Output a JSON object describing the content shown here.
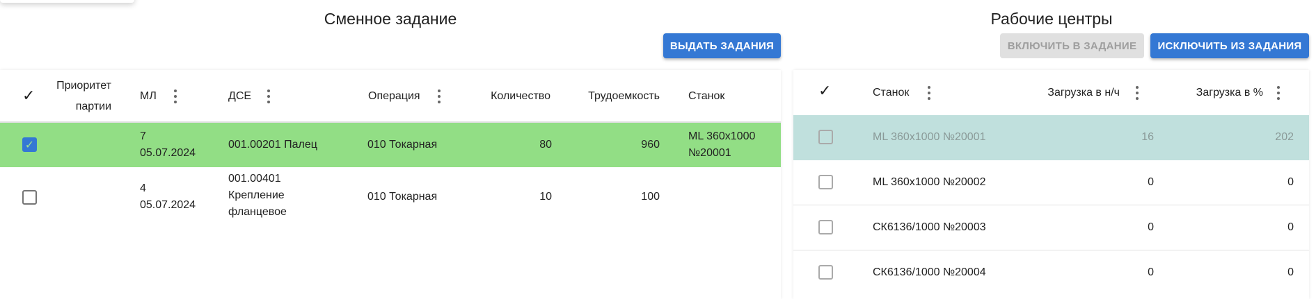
{
  "left": {
    "title": "Сменное задание",
    "issue_button": "ВЫДАТЬ ЗАДАНИЯ",
    "columns": {
      "check": "✓",
      "priority_1": "Приоритет",
      "priority_2": "партии",
      "ml": "МЛ",
      "dse": "ДСЕ",
      "operation": "Операция",
      "quantity": "Количество",
      "labor": "Трудоемкость",
      "machine": "Станок"
    },
    "rows": [
      {
        "selected": true,
        "ml_num": "7",
        "ml_date": "05.07.2024",
        "dse": [
          "001.00201 Палец"
        ],
        "operation": "010 Токарная",
        "quantity": "80",
        "labor": "960",
        "machine": [
          "ML 360x1000",
          "№20001"
        ]
      },
      {
        "selected": false,
        "ml_num": "4",
        "ml_date": "05.07.2024",
        "dse": [
          "001.00401",
          "Крепление",
          "фланцевое"
        ],
        "operation": "010 Токарная",
        "quantity": "10",
        "labor": "100",
        "machine": []
      }
    ]
  },
  "right": {
    "title": "Рабочие центры",
    "include_button": "ВКЛЮЧИТЬ В ЗАДАНИЕ",
    "exclude_button": "ИСКЛЮЧИТЬ ИЗ ЗАДАНИЯ",
    "columns": {
      "check": "✓",
      "machine": "Станок",
      "load_hours": "Загрузка в н/ч",
      "load_pct": "Загрузка в %"
    },
    "rows": [
      {
        "machine": "ML 360x1000 №20001",
        "load_hours": "16",
        "load_pct": "202",
        "highlighted": true
      },
      {
        "machine": "ML 360x1000 №20002",
        "load_hours": "0",
        "load_pct": "0"
      },
      {
        "machine": "СК6136/1000 №20003",
        "load_hours": "0",
        "load_pct": "0"
      },
      {
        "machine": "СК6136/1000 №20004",
        "load_hours": "0",
        "load_pct": "0"
      }
    ]
  },
  "colors": {
    "accent": "#3478d4",
    "selected_row": "#92de85",
    "highlight_row": "#c0e0dd"
  }
}
